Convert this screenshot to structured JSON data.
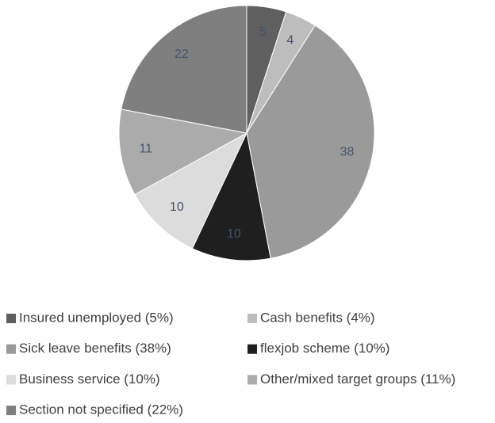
{
  "chart_data": {
    "type": "pie",
    "categories": [
      "Insured unemployed (5%)",
      "Cash benefits (4%)",
      "Sick leave benefits (38%)",
      "flexjob scheme (10%)",
      "Business service (10%)",
      "Other/mixed target groups (11%)",
      "Section not specified (22%)"
    ],
    "values": [
      5,
      4,
      38,
      10,
      10,
      11,
      22
    ],
    "colors": [
      "#5f5f5f",
      "#bdbdbd",
      "#9a9a9a",
      "#1f1f1f",
      "#dcdcdc",
      "#ababab",
      "#7f7f7f"
    ],
    "legend": "bottom"
  }
}
